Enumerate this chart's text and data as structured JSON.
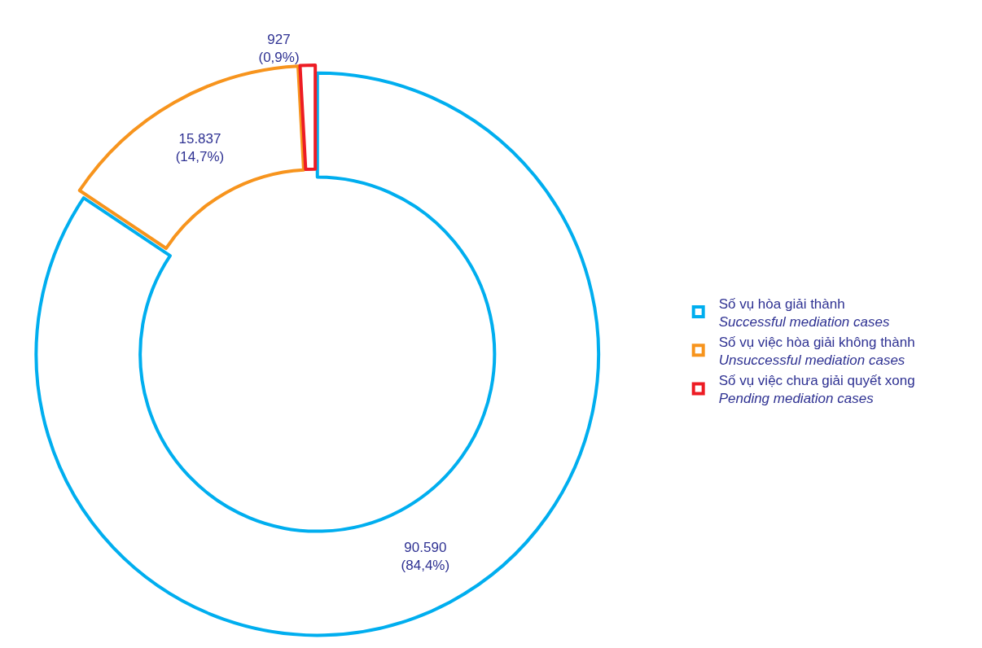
{
  "chart_data": {
    "type": "donut",
    "categories": [
      "Số vụ hòa giải thành\nSuccessful mediation cases",
      "Số vụ việc hòa giải không thành\nUnsuccessful mediation cases",
      "Số vụ việc chưa giải quyết xong\nPending mediation cases"
    ],
    "values": [
      90590,
      15837,
      927
    ],
    "value_labels": [
      "90.590\n(84,4%)",
      "15.837\n(14,7%)",
      "927\n(0,9%)"
    ],
    "colors": [
      "#00aeef",
      "#f7941d",
      "#ed1c24"
    ],
    "legend": "right"
  }
}
